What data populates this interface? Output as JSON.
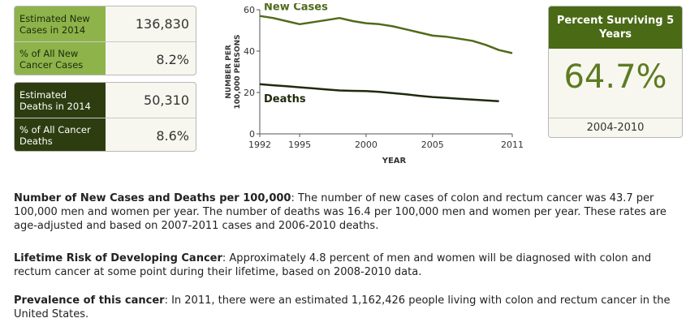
{
  "new_cases_box": {
    "estimated_label": "Estimated New Cases in 2014",
    "estimated_value": "136,830",
    "percent_label": "% of All New Cancer Cases",
    "percent_value": "8.2%"
  },
  "deaths_box": {
    "estimated_label": "Estimated Deaths in 2014",
    "estimated_value": "50,310",
    "percent_label": "% of All Cancer Deaths",
    "percent_value": "8.6%"
  },
  "chart_data": {
    "type": "line",
    "ylabel": "NUMBER PER 100,000 PERSONS",
    "xlabel": "YEAR",
    "xlim": [
      1992,
      2011
    ],
    "ylim": [
      0,
      60
    ],
    "x_ticks": [
      1992,
      1995,
      2000,
      2005,
      2011
    ],
    "y_ticks": [
      0,
      20,
      40,
      60
    ],
    "series": [
      {
        "name": "New Cases",
        "color": "#4f6b1a",
        "x": [
          1992,
          1993,
          1994,
          1995,
          1996,
          1997,
          1998,
          1999,
          2000,
          2001,
          2002,
          2003,
          2004,
          2005,
          2006,
          2007,
          2008,
          2009,
          2010,
          2011
        ],
        "values": [
          57,
          56,
          54.5,
          53,
          54,
          55,
          56,
          54.5,
          53.5,
          53,
          52,
          50.5,
          49,
          47.5,
          47,
          46,
          45,
          43,
          40.5,
          39
        ]
      },
      {
        "name": "Deaths",
        "color": "#1f2a0c",
        "x": [
          1992,
          1993,
          1994,
          1995,
          1996,
          1997,
          1998,
          1999,
          2000,
          2001,
          2002,
          2003,
          2004,
          2005,
          2006,
          2007,
          2008,
          2009,
          2010
        ],
        "values": [
          24,
          23.5,
          23,
          22.5,
          22,
          21.5,
          21,
          20.8,
          20.7,
          20.3,
          19.7,
          19.1,
          18.4,
          17.8,
          17.4,
          17,
          16.6,
          16.2,
          15.8
        ]
      }
    ]
  },
  "survival": {
    "title": "Percent Surviving 5 Years",
    "value": "64.7%",
    "period": "2004-2010"
  },
  "paragraphs": [
    {
      "heading": "Number of New Cases and Deaths per 100,000",
      "body": ": The number of new cases of colon and rectum cancer was 43.7 per 100,000 men and women per year. The number of deaths was 16.4 per 100,000 men and women per year. These rates are age-adjusted and based on 2007-2011 cases and 2006-2010 deaths."
    },
    {
      "heading": "Lifetime Risk of Developing Cancer",
      "body": ": Approximately 4.8 percent of men and women will be diagnosed with colon and rectum cancer at some point during their lifetime, based on 2008-2010 data."
    },
    {
      "heading": "Prevalence of this cancer",
      "body": ": In 2011, there were an estimated 1,162,426 people living with colon and rectum cancer in the United States."
    }
  ]
}
